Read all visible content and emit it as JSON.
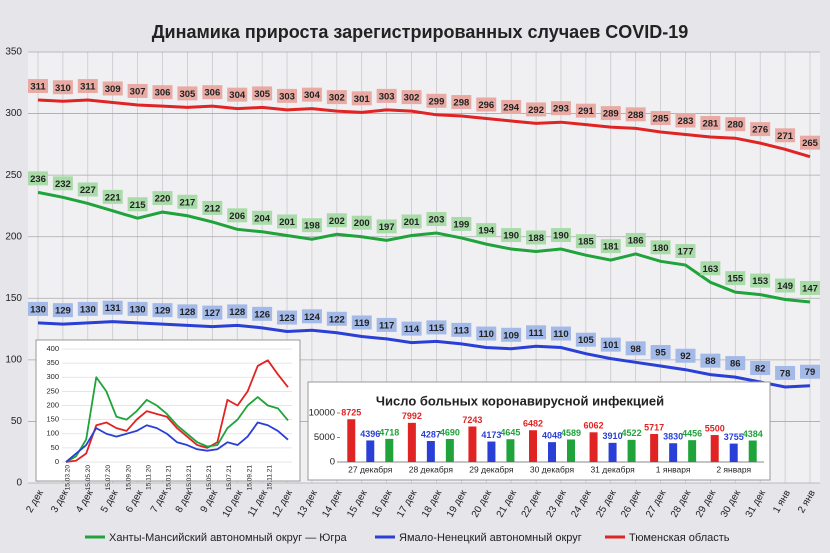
{
  "chart_data": [
    {
      "type": "line",
      "title": "Динамика прироста зарегистрированных случаев COVID-19",
      "categories": [
        "2 дек",
        "3 дек",
        "4 дек",
        "5 дек",
        "6 дек",
        "7 дек",
        "8 дек",
        "9 дек",
        "10 дек",
        "11 дек",
        "12 дек",
        "13 дек",
        "14 дек",
        "15 дек",
        "16 дек",
        "17 дек",
        "18 дек",
        "19 дек",
        "20 дек",
        "21 дек",
        "22 дек",
        "23 дек",
        "24 дек",
        "25 дек",
        "26 дек",
        "27 дек",
        "28 дек",
        "29 дек",
        "30 дек",
        "31 дек",
        "1 янв",
        "2 янв"
      ],
      "series": [
        {
          "name": "Ханты-Мансийский автономный округ — Югра",
          "color": "#1fa33a",
          "label_color": "#a9dba9",
          "values": [
            236,
            232,
            227,
            221,
            215,
            220,
            217,
            212,
            206,
            204,
            201,
            198,
            202,
            200,
            197,
            201,
            203,
            199,
            194,
            190,
            188,
            190,
            185,
            181,
            186,
            180,
            177,
            163,
            155,
            153,
            149,
            147
          ]
        },
        {
          "name": "Ямало-Ненецкий автономный округ",
          "color": "#2a3fd6",
          "label_color": "#a3b9e8",
          "values": [
            130,
            129,
            130,
            131,
            130,
            129,
            128,
            127,
            128,
            126,
            123,
            124,
            122,
            119,
            117,
            114,
            115,
            113,
            110,
            109,
            111,
            110,
            105,
            101,
            98,
            95,
            92,
            88,
            86,
            82,
            78,
            79
          ]
        },
        {
          "name": "Тюменская область",
          "color": "#e02424",
          "label_color": "#e9aaa4",
          "values": [
            311,
            310,
            311,
            309,
            307,
            306,
            305,
            306,
            304,
            305,
            303,
            304,
            302,
            301,
            303,
            302,
            299,
            298,
            296,
            294,
            292,
            293,
            291,
            289,
            288,
            285,
            283,
            281,
            280,
            276,
            271,
            265
          ]
        }
      ],
      "ylim": [
        0,
        350
      ],
      "yticks": [
        0,
        50,
        100,
        150,
        200,
        250,
        300,
        350
      ],
      "grid": true
    },
    {
      "type": "line",
      "categories": [
        "15.03.20",
        null,
        "15.05.20",
        null,
        "15.07.20",
        null,
        "15.09.20",
        null,
        "15.11.20",
        null,
        "15.01.21",
        null,
        "15.03.21",
        null,
        "15.05.21",
        null,
        "15.07.21",
        null,
        "15.09.21",
        null,
        "15.11.21",
        null,
        null
      ],
      "series": [
        {
          "color": "#e02424",
          "values": [
            0,
            5,
            30,
            130,
            140,
            120,
            110,
            150,
            180,
            170,
            160,
            120,
            90,
            60,
            50,
            70,
            220,
            200,
            250,
            340,
            360,
            310,
            265
          ]
        },
        {
          "color": "#1fa33a",
          "values": [
            0,
            20,
            80,
            300,
            250,
            160,
            150,
            180,
            220,
            200,
            170,
            130,
            100,
            70,
            55,
            60,
            120,
            150,
            200,
            230,
            200,
            190,
            147
          ]
        },
        {
          "color": "#2a3fd6",
          "values": [
            0,
            30,
            60,
            120,
            100,
            90,
            100,
            110,
            130,
            120,
            100,
            70,
            60,
            45,
            40,
            45,
            70,
            60,
            90,
            140,
            130,
            110,
            79
          ]
        }
      ],
      "ylim": [
        0,
        400
      ],
      "yticks": [
        0,
        50,
        100,
        150,
        200,
        250,
        300,
        350,
        400
      ],
      "grid": true
    },
    {
      "type": "bar",
      "title": "Число больных коронавирусной  инфекцией",
      "categories": [
        "27 декабря",
        "28 декабря",
        "29 декабря",
        "30 декабря",
        "31 декабря",
        "1 января",
        "2 января"
      ],
      "series": [
        {
          "color": "#e02424",
          "values": [
            8725,
            7992,
            7243,
            6482,
            6062,
            5717,
            5500
          ]
        },
        {
          "color": "#2a3fd6",
          "values": [
            4396,
            4287,
            4173,
            4048,
            3910,
            3830,
            3755
          ]
        },
        {
          "color": "#1fa33a",
          "values": [
            4718,
            4690,
            4645,
            4589,
            4522,
            4456,
            4384
          ]
        }
      ],
      "ylim": [
        0,
        10000
      ],
      "yticks": [
        0,
        5000,
        10000
      ],
      "grid": false
    }
  ]
}
